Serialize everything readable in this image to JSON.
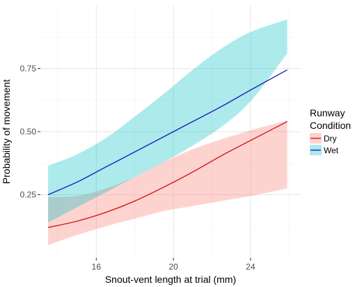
{
  "chart_data": {
    "type": "line",
    "xlabel": "Snout-vent length at trial (mm)",
    "ylabel": "Probability of movement",
    "xlim": [
      13.1,
      26.6
    ],
    "ylim": [
      0.0,
      1.0
    ],
    "x_ticks": [
      16,
      20,
      24
    ],
    "y_ticks": [
      0.25,
      0.5,
      0.75
    ],
    "y_tick_labels": [
      "0.25",
      "0.50",
      "0.75"
    ],
    "grid": true,
    "legend": {
      "title_lines": [
        "Runway",
        "Condition"
      ],
      "position": "right"
    },
    "series": [
      {
        "name": "Dry",
        "color": "#d7191c",
        "band_color": "#f8766d",
        "x": [
          13.5,
          15.0,
          16.5,
          18.0,
          19.5,
          21.0,
          22.5,
          24.0,
          25.9
        ],
        "y": [
          0.12,
          0.145,
          0.18,
          0.225,
          0.28,
          0.34,
          0.405,
          0.465,
          0.54
        ],
        "lower": [
          0.05,
          0.09,
          0.125,
          0.155,
          0.185,
          0.205,
          0.225,
          0.245,
          0.275
        ],
        "upper": [
          0.24,
          0.245,
          0.275,
          0.32,
          0.38,
          0.43,
          0.47,
          0.505,
          0.545
        ]
      },
      {
        "name": "Wet",
        "color": "#1f1fbf",
        "band_color": "#00bfc4",
        "x": [
          13.5,
          15.0,
          16.5,
          18.0,
          19.5,
          21.0,
          22.5,
          24.0,
          25.9
        ],
        "y": [
          0.25,
          0.3,
          0.36,
          0.42,
          0.48,
          0.54,
          0.6,
          0.665,
          0.745
        ],
        "lower": [
          0.14,
          0.2,
          0.26,
          0.32,
          0.38,
          0.445,
          0.52,
          0.62,
          0.81
        ],
        "upper": [
          0.365,
          0.41,
          0.475,
          0.56,
          0.65,
          0.745,
          0.83,
          0.895,
          0.945
        ]
      }
    ]
  }
}
